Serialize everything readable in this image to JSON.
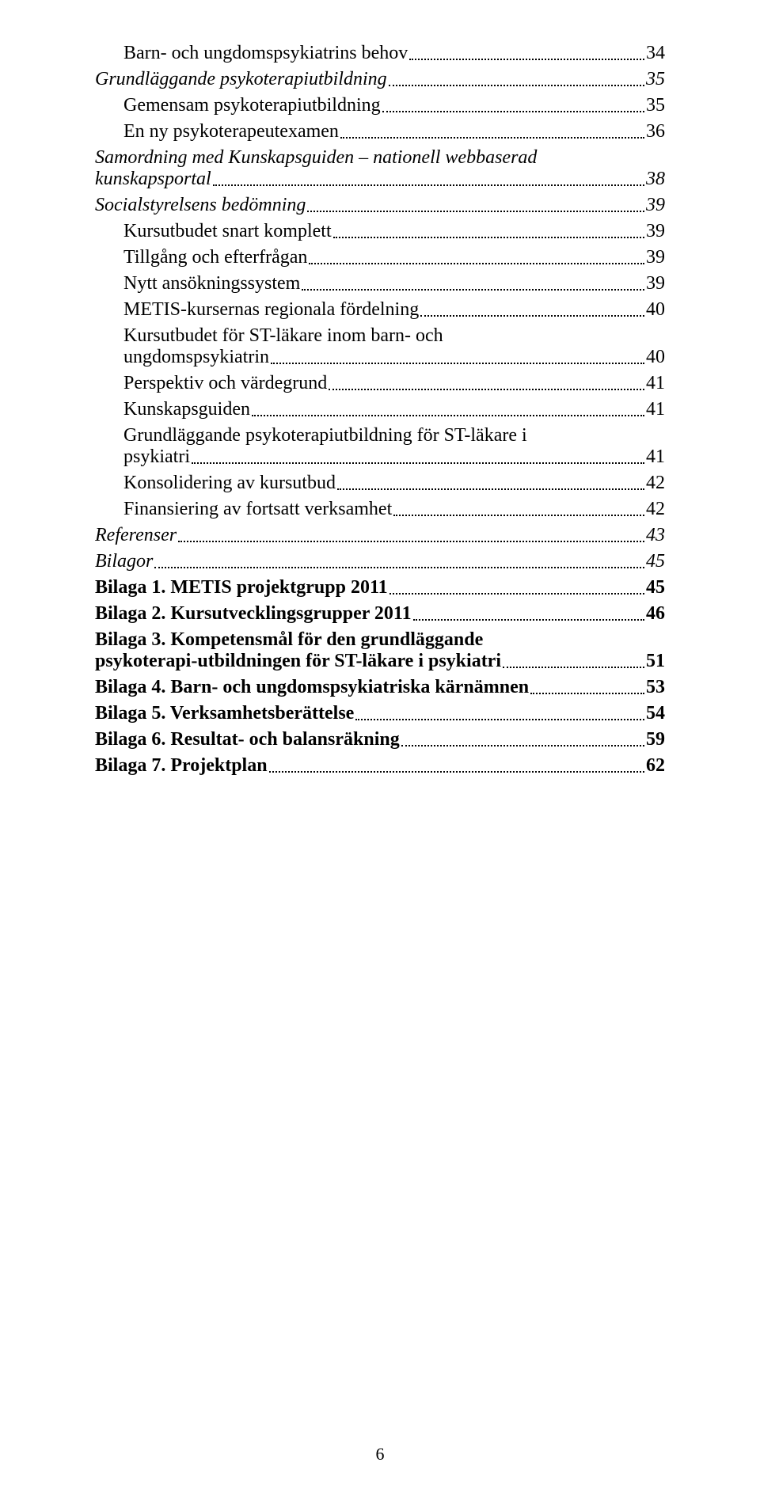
{
  "page_number": "6",
  "toc": [
    {
      "label": "Barn- och ungdomspsykiatrins behov",
      "page": "34",
      "level": "lvl2"
    },
    {
      "label": "Grundläggande psykoterapiutbildning",
      "page": "35",
      "level": "lvl1-italic"
    },
    {
      "label": "Gemensam psykoterapiutbildning",
      "page": "35",
      "level": "lvl2"
    },
    {
      "label": "En ny psykoterapeutexamen",
      "page": "36",
      "level": "lvl2"
    },
    {
      "label": "Samordning med Kunskapsguiden – nationell webbaserad kunskapsportal",
      "page": "38",
      "level": "lvl1-italic"
    },
    {
      "label": "Socialstyrelsens bedömning",
      "page": "39",
      "level": "lvl1-italic"
    },
    {
      "label": "Kursutbudet snart komplett",
      "page": "39",
      "level": "lvl2"
    },
    {
      "label": "Tillgång och efterfrågan",
      "page": "39",
      "level": "lvl2"
    },
    {
      "label": "Nytt ansökningssystem",
      "page": "39",
      "level": "lvl2"
    },
    {
      "label": "METIS-kursernas regionala fördelning",
      "page": "40",
      "level": "lvl2"
    },
    {
      "label": "Kursutbudet för ST-läkare inom barn- och  ungdomspsykiatrin",
      "page": "40",
      "level": "lvl2"
    },
    {
      "label": "Perspektiv och värdegrund",
      "page": "41",
      "level": "lvl2"
    },
    {
      "label": "Kunskapsguiden",
      "page": "41",
      "level": "lvl2"
    },
    {
      "label": "Grundläggande psykoterapiutbildning  för ST-läkare i psykiatri",
      "page": "41",
      "level": "lvl2"
    },
    {
      "label": "Konsolidering av kursutbud",
      "page": "42",
      "level": "lvl2"
    },
    {
      "label": "Finansiering av fortsatt verksamhet",
      "page": "42",
      "level": "lvl2"
    },
    {
      "label": "Referenser",
      "page": "43",
      "level": "lvl1-italic"
    },
    {
      "label": "Bilagor",
      "page": "45",
      "level": "lvl1-italic"
    },
    {
      "label": "Bilaga 1. METIS projektgrupp 2011",
      "page": "45",
      "level": "lvl0"
    },
    {
      "label": "Bilaga 2. Kursutvecklingsgrupper 2011",
      "page": "46",
      "level": "lvl0"
    },
    {
      "label": "Bilaga 3. Kompetensmål för den grundläggande psykoterapi-utbildningen för ST-läkare i psykiatri",
      "page": "51",
      "level": "lvl0"
    },
    {
      "label": "Bilaga 4. Barn- och ungdomspsykiatriska kärnämnen",
      "page": "53",
      "level": "lvl0"
    },
    {
      "label": "Bilaga 5. Verksamhetsberättelse",
      "page": "54",
      "level": "lvl0"
    },
    {
      "label": "Bilaga 6. Resultat-  och balansräkning",
      "page": "59",
      "level": "lvl0"
    },
    {
      "label": "Bilaga 7. Projektplan",
      "page": "62",
      "level": "lvl0"
    }
  ]
}
